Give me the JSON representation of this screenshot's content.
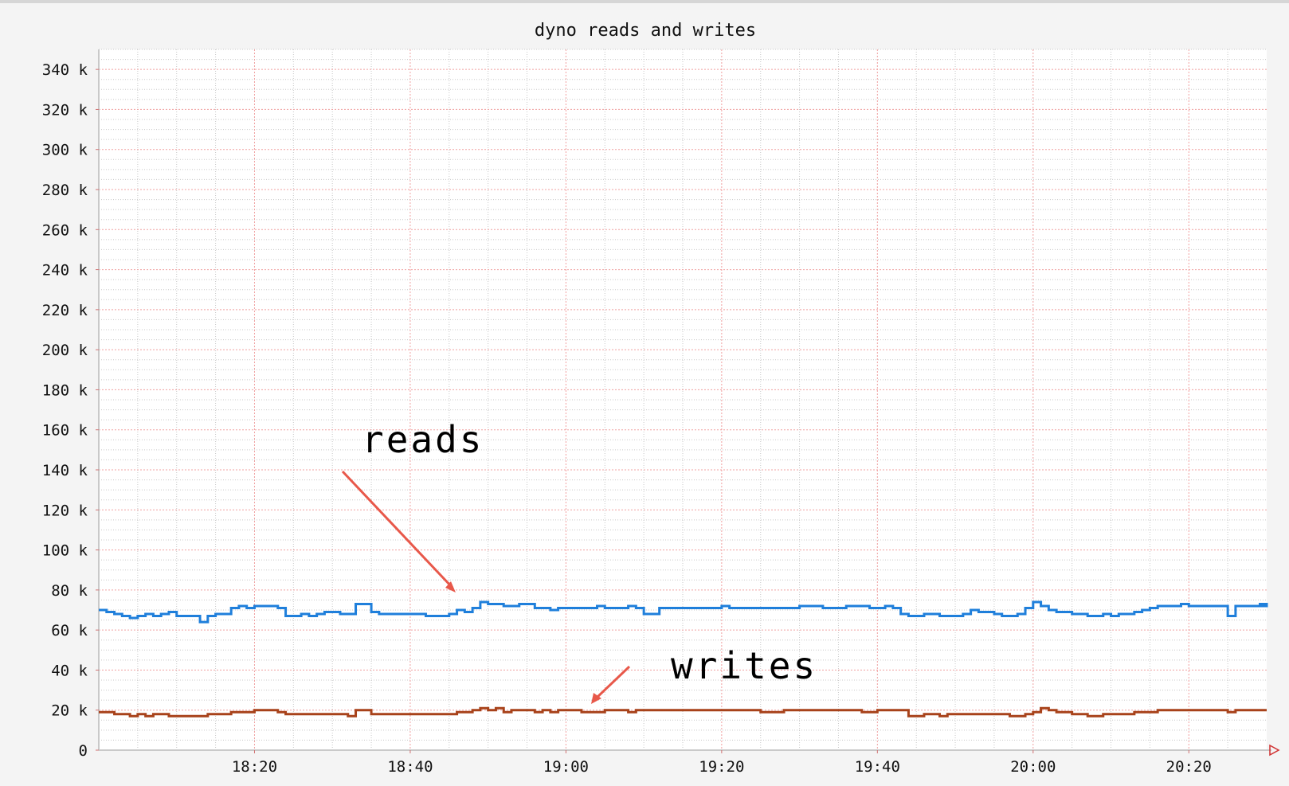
{
  "chart_data": {
    "type": "line",
    "title": "dyno reads and writes",
    "xlabel": "",
    "ylabel": "",
    "x_start": "18:00",
    "x_end": "20:30",
    "x_ticks": [
      "18:20",
      "18:40",
      "19:00",
      "19:20",
      "19:40",
      "20:00",
      "20:20"
    ],
    "ylim": [
      0,
      350000
    ],
    "y_ticks": [
      {
        "value": 0,
        "label": "0"
      },
      {
        "value": 20000,
        "label": "20 k"
      },
      {
        "value": 40000,
        "label": "40 k"
      },
      {
        "value": 60000,
        "label": "60 k"
      },
      {
        "value": 80000,
        "label": "80 k"
      },
      {
        "value": 100000,
        "label": "100 k"
      },
      {
        "value": 120000,
        "label": "120 k"
      },
      {
        "value": 140000,
        "label": "140 k"
      },
      {
        "value": 160000,
        "label": "160 k"
      },
      {
        "value": 180000,
        "label": "180 k"
      },
      {
        "value": 200000,
        "label": "200 k"
      },
      {
        "value": 220000,
        "label": "220 k"
      },
      {
        "value": 240000,
        "label": "240 k"
      },
      {
        "value": 260000,
        "label": "260 k"
      },
      {
        "value": 280000,
        "label": "280 k"
      },
      {
        "value": 300000,
        "label": "300 k"
      },
      {
        "value": 320000,
        "label": "320 k"
      },
      {
        "value": 340000,
        "label": "340 k"
      }
    ],
    "grid": true,
    "line_style": "step",
    "colors": {
      "reads": "#1f7fdb",
      "writes": "#a8421a",
      "major_grid": "#f0a0a0",
      "minor_grid": "#c8c8c8",
      "annotation_arrow": "#e8584a"
    },
    "series": [
      {
        "name": "reads",
        "x": [
          "18:00",
          "18:01",
          "18:02",
          "18:03",
          "18:04",
          "18:05",
          "18:06",
          "18:07",
          "18:08",
          "18:09",
          "18:10",
          "18:11",
          "18:12",
          "18:13",
          "18:14",
          "18:15",
          "18:16",
          "18:17",
          "18:18",
          "18:19",
          "18:20",
          "18:21",
          "18:22",
          "18:23",
          "18:24",
          "18:25",
          "18:26",
          "18:27",
          "18:28",
          "18:29",
          "18:30",
          "18:31",
          "18:32",
          "18:33",
          "18:34",
          "18:35",
          "18:36",
          "18:37",
          "18:38",
          "18:39",
          "18:40",
          "18:41",
          "18:42",
          "18:43",
          "18:44",
          "18:45",
          "18:46",
          "18:47",
          "18:48",
          "18:49",
          "18:50",
          "18:51",
          "18:52",
          "18:53",
          "18:54",
          "18:55",
          "18:56",
          "18:57",
          "18:58",
          "18:59",
          "19:00",
          "19:01",
          "19:02",
          "19:03",
          "19:04",
          "19:05",
          "19:06",
          "19:07",
          "19:08",
          "19:09",
          "19:10",
          "19:11",
          "19:12",
          "19:13",
          "19:14",
          "19:15",
          "19:16",
          "19:17",
          "19:18",
          "19:19",
          "19:20",
          "19:21",
          "19:22",
          "19:23",
          "19:24",
          "19:25",
          "19:26",
          "19:27",
          "19:28",
          "19:29",
          "19:30",
          "19:31",
          "19:32",
          "19:33",
          "19:34",
          "19:35",
          "19:36",
          "19:37",
          "19:38",
          "19:39",
          "19:40",
          "19:41",
          "19:42",
          "19:43",
          "19:44",
          "19:45",
          "19:46",
          "19:47",
          "19:48",
          "19:49",
          "19:50",
          "19:51",
          "19:52",
          "19:53",
          "19:54",
          "19:55",
          "19:56",
          "19:57",
          "19:58",
          "19:59",
          "20:00",
          "20:01",
          "20:02",
          "20:03",
          "20:04",
          "20:05",
          "20:06",
          "20:07",
          "20:08",
          "20:09",
          "20:10",
          "20:11",
          "20:12",
          "20:13",
          "20:14",
          "20:15",
          "20:16",
          "20:17",
          "20:18",
          "20:19",
          "20:20",
          "20:21",
          "20:22",
          "20:23",
          "20:24",
          "20:25",
          "20:26",
          "20:27",
          "20:28",
          "20:29",
          "20:30"
        ],
        "values": [
          70000,
          69000,
          68000,
          67000,
          66000,
          67000,
          68000,
          67000,
          68000,
          69000,
          67000,
          67000,
          67000,
          64000,
          67000,
          68000,
          68000,
          71000,
          72000,
          71000,
          72000,
          72000,
          72000,
          71000,
          67000,
          67000,
          68000,
          67000,
          68000,
          69000,
          69000,
          68000,
          68000,
          73000,
          73000,
          69000,
          68000,
          68000,
          68000,
          68000,
          68000,
          68000,
          67000,
          67000,
          67000,
          68000,
          70000,
          69000,
          71000,
          74000,
          73000,
          73000,
          72000,
          72000,
          73000,
          73000,
          71000,
          71000,
          70000,
          71000,
          71000,
          71000,
          71000,
          71000,
          72000,
          71000,
          71000,
          71000,
          72000,
          71000,
          68000,
          68000,
          71000,
          71000,
          71000,
          71000,
          71000,
          71000,
          71000,
          71000,
          72000,
          71000,
          71000,
          71000,
          71000,
          71000,
          71000,
          71000,
          71000,
          71000,
          72000,
          72000,
          72000,
          71000,
          71000,
          71000,
          72000,
          72000,
          72000,
          71000,
          71000,
          72000,
          71000,
          68000,
          67000,
          67000,
          68000,
          68000,
          67000,
          67000,
          67000,
          68000,
          70000,
          69000,
          69000,
          68000,
          67000,
          67000,
          68000,
          71000,
          74000,
          72000,
          70000,
          69000,
          69000,
          68000,
          68000,
          67000,
          67000,
          68000,
          67000,
          68000,
          68000,
          69000,
          70000,
          71000,
          72000,
          72000,
          72000,
          73000,
          72000,
          72000,
          72000,
          72000,
          72000,
          67000,
          72000,
          72000,
          72000,
          72000,
          73000
        ],
        "label": "reads"
      },
      {
        "name": "writes",
        "x": [
          "18:00",
          "18:01",
          "18:02",
          "18:03",
          "18:04",
          "18:05",
          "18:06",
          "18:07",
          "18:08",
          "18:09",
          "18:10",
          "18:11",
          "18:12",
          "18:13",
          "18:14",
          "18:15",
          "18:16",
          "18:17",
          "18:18",
          "18:19",
          "18:20",
          "18:21",
          "18:22",
          "18:23",
          "18:24",
          "18:25",
          "18:26",
          "18:27",
          "18:28",
          "18:29",
          "18:30",
          "18:31",
          "18:32",
          "18:33",
          "18:34",
          "18:35",
          "18:36",
          "18:37",
          "18:38",
          "18:39",
          "18:40",
          "18:41",
          "18:42",
          "18:43",
          "18:44",
          "18:45",
          "18:46",
          "18:47",
          "18:48",
          "18:49",
          "18:50",
          "18:51",
          "18:52",
          "18:53",
          "18:54",
          "18:55",
          "18:56",
          "18:57",
          "18:58",
          "18:59",
          "19:00",
          "19:01",
          "19:02",
          "19:03",
          "19:04",
          "19:05",
          "19:06",
          "19:07",
          "19:08",
          "19:09",
          "19:10",
          "19:11",
          "19:12",
          "19:13",
          "19:14",
          "19:15",
          "19:16",
          "19:17",
          "19:18",
          "19:19",
          "19:20",
          "19:21",
          "19:22",
          "19:23",
          "19:24",
          "19:25",
          "19:26",
          "19:27",
          "19:28",
          "19:29",
          "19:30",
          "19:31",
          "19:32",
          "19:33",
          "19:34",
          "19:35",
          "19:36",
          "19:37",
          "19:38",
          "19:39",
          "19:40",
          "19:41",
          "19:42",
          "19:43",
          "19:44",
          "19:45",
          "19:46",
          "19:47",
          "19:48",
          "19:49",
          "19:50",
          "19:51",
          "19:52",
          "19:53",
          "19:54",
          "19:55",
          "19:56",
          "19:57",
          "19:58",
          "19:59",
          "20:00",
          "20:01",
          "20:02",
          "20:03",
          "20:04",
          "20:05",
          "20:06",
          "20:07",
          "20:08",
          "20:09",
          "20:10",
          "20:11",
          "20:12",
          "20:13",
          "20:14",
          "20:15",
          "20:16",
          "20:17",
          "20:18",
          "20:19",
          "20:20",
          "20:21",
          "20:22",
          "20:23",
          "20:24",
          "20:25",
          "20:26",
          "20:27",
          "20:28",
          "20:29",
          "20:30"
        ],
        "values": [
          19000,
          19000,
          18000,
          18000,
          17000,
          18000,
          17000,
          18000,
          18000,
          17000,
          17000,
          17000,
          17000,
          17000,
          18000,
          18000,
          18000,
          19000,
          19000,
          19000,
          20000,
          20000,
          20000,
          19000,
          18000,
          18000,
          18000,
          18000,
          18000,
          18000,
          18000,
          18000,
          17000,
          20000,
          20000,
          18000,
          18000,
          18000,
          18000,
          18000,
          18000,
          18000,
          18000,
          18000,
          18000,
          18000,
          19000,
          19000,
          20000,
          21000,
          20000,
          21000,
          19000,
          20000,
          20000,
          20000,
          19000,
          20000,
          19000,
          20000,
          20000,
          20000,
          19000,
          19000,
          19000,
          20000,
          20000,
          20000,
          19000,
          20000,
          20000,
          20000,
          20000,
          20000,
          20000,
          20000,
          20000,
          20000,
          20000,
          20000,
          20000,
          20000,
          20000,
          20000,
          20000,
          19000,
          19000,
          19000,
          20000,
          20000,
          20000,
          20000,
          20000,
          20000,
          20000,
          20000,
          20000,
          20000,
          19000,
          19000,
          20000,
          20000,
          20000,
          20000,
          17000,
          17000,
          18000,
          18000,
          17000,
          18000,
          18000,
          18000,
          18000,
          18000,
          18000,
          18000,
          18000,
          17000,
          17000,
          18000,
          19000,
          21000,
          20000,
          19000,
          19000,
          18000,
          18000,
          17000,
          17000,
          18000,
          18000,
          18000,
          18000,
          19000,
          19000,
          19000,
          20000,
          20000,
          20000,
          20000,
          20000,
          20000,
          20000,
          20000,
          20000,
          19000,
          20000,
          20000,
          20000,
          20000,
          20000
        ],
        "label": "writes"
      }
    ]
  }
}
